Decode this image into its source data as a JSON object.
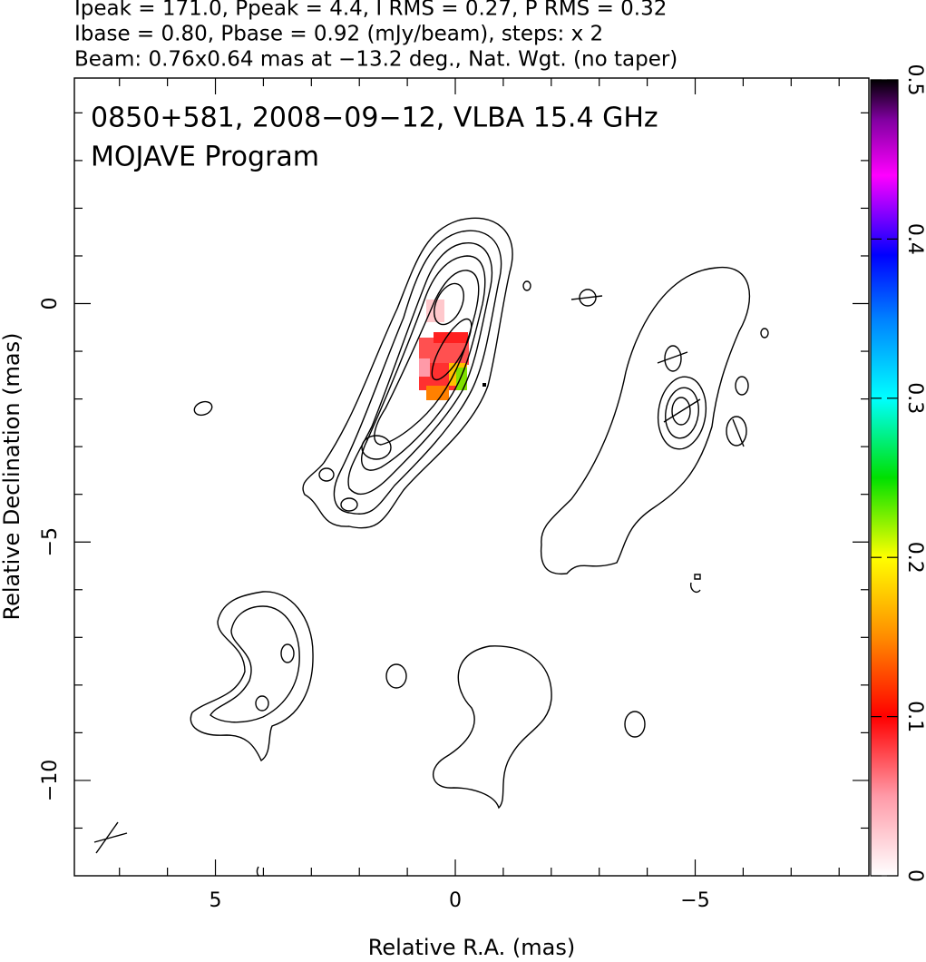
{
  "chart_data": {
    "type": "contour",
    "header": [
      "Ipeak = 171.0, Ppeak = 4.4, I RMS = 0.27, P RMS = 0.32",
      "Ibase = 0.80, Pbase = 0.92 (mJy/beam), steps: x 2",
      "Beam: 0.76x0.64 mas at −13.2 deg., Nat. Wgt. (no taper)"
    ],
    "title": "0850+581, 2008−09−12, VLBA 15.4 GHz",
    "subtitle": "MOJAVE Program",
    "xlabel": "Relative R.A. (mas)",
    "ylabel": "Relative Declination (mas)",
    "xlim": [
      7.94,
      -8.62
    ],
    "ylim": [
      -12,
      4.73
    ],
    "xticks": [
      5,
      0,
      {
        "value": -5,
        "label": "−5"
      }
    ],
    "yticks": [
      0,
      {
        "value": -5,
        "label": "−5"
      },
      {
        "value": -10,
        "label": "−10"
      }
    ],
    "xminorticks": [
      7,
      6,
      4,
      3,
      2,
      1,
      -1,
      -2,
      -3,
      -4,
      -6,
      -7,
      -8
    ],
    "yminorticks": [
      4,
      3,
      2,
      1,
      -1,
      -2,
      -3,
      -4,
      -6,
      -7,
      -8,
      -9,
      -11
    ],
    "clim": [
      0,
      0.5
    ],
    "cticks": [
      0,
      0.1,
      0.2,
      0.3,
      0.4,
      0.5
    ]
  }
}
